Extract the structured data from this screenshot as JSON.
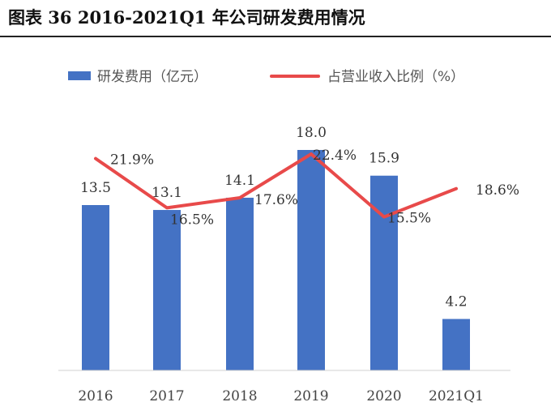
{
  "title": "图表 36 2016-2021Q1 年公司研发费用情况",
  "legend": {
    "bar_label": "研发费用（亿元）",
    "line_label": "占营业收入比例（%）"
  },
  "colors": {
    "bar": "#4472C4",
    "line": "#E84A4A"
  },
  "chart_data": {
    "type": "bar",
    "categories": [
      "2016",
      "2017",
      "2018",
      "2019",
      "2020",
      "2021Q1"
    ],
    "series": [
      {
        "name": "研发费用（亿元）",
        "type": "bar",
        "values": [
          13.5,
          13.1,
          14.1,
          18.0,
          15.9,
          4.2
        ],
        "labels": [
          "13.5",
          "13.1",
          "14.1",
          "18.0",
          "15.9",
          "4.2"
        ]
      },
      {
        "name": "占营业收入比例（%）",
        "type": "line",
        "values": [
          21.9,
          16.5,
          17.6,
          22.4,
          15.5,
          18.6
        ],
        "labels": [
          "21.9%",
          "16.5%",
          "17.6%",
          "22.4%",
          "15.5%",
          "18.6%"
        ]
      }
    ],
    "ylim_bar": [
      0,
      20
    ],
    "ylim_line": [
      0,
      25
    ],
    "legend_position": "top",
    "grid": false
  }
}
